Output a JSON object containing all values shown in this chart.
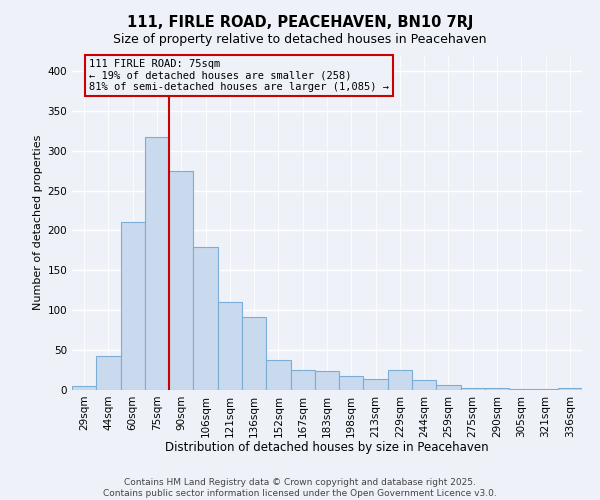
{
  "title": "111, FIRLE ROAD, PEACEHAVEN, BN10 7RJ",
  "subtitle": "Size of property relative to detached houses in Peacehaven",
  "xlabel": "Distribution of detached houses by size in Peacehaven",
  "ylabel": "Number of detached properties",
  "bar_labels": [
    "29sqm",
    "44sqm",
    "60sqm",
    "75sqm",
    "90sqm",
    "106sqm",
    "121sqm",
    "136sqm",
    "152sqm",
    "167sqm",
    "183sqm",
    "198sqm",
    "213sqm",
    "229sqm",
    "244sqm",
    "259sqm",
    "275sqm",
    "290sqm",
    "305sqm",
    "321sqm",
    "336sqm"
  ],
  "bar_values": [
    5,
    43,
    211,
    317,
    275,
    179,
    110,
    92,
    38,
    25,
    24,
    18,
    14,
    25,
    13,
    6,
    2,
    2,
    1,
    1,
    3
  ],
  "bar_color": "#c9d9ee",
  "bar_edge_color": "#7aaed6",
  "ylim": [
    0,
    420
  ],
  "yticks": [
    0,
    50,
    100,
    150,
    200,
    250,
    300,
    350,
    400
  ],
  "vline_x_index": 3,
  "vline_color": "#cc0000",
  "annotation_title": "111 FIRLE ROAD: 75sqm",
  "annotation_line1": "← 19% of detached houses are smaller (258)",
  "annotation_line2": "81% of semi-detached houses are larger (1,085) →",
  "annotation_box_color": "#cc0000",
  "footer_line1": "Contains HM Land Registry data © Crown copyright and database right 2025.",
  "footer_line2": "Contains public sector information licensed under the Open Government Licence v3.0.",
  "background_color": "#eef2f8",
  "grid_color": "#ffffff",
  "title_fontsize": 10.5,
  "subtitle_fontsize": 9,
  "xlabel_fontsize": 8.5,
  "ylabel_fontsize": 8,
  "tick_fontsize": 7.5,
  "annotation_fontsize": 7.5,
  "footer_fontsize": 6.5
}
